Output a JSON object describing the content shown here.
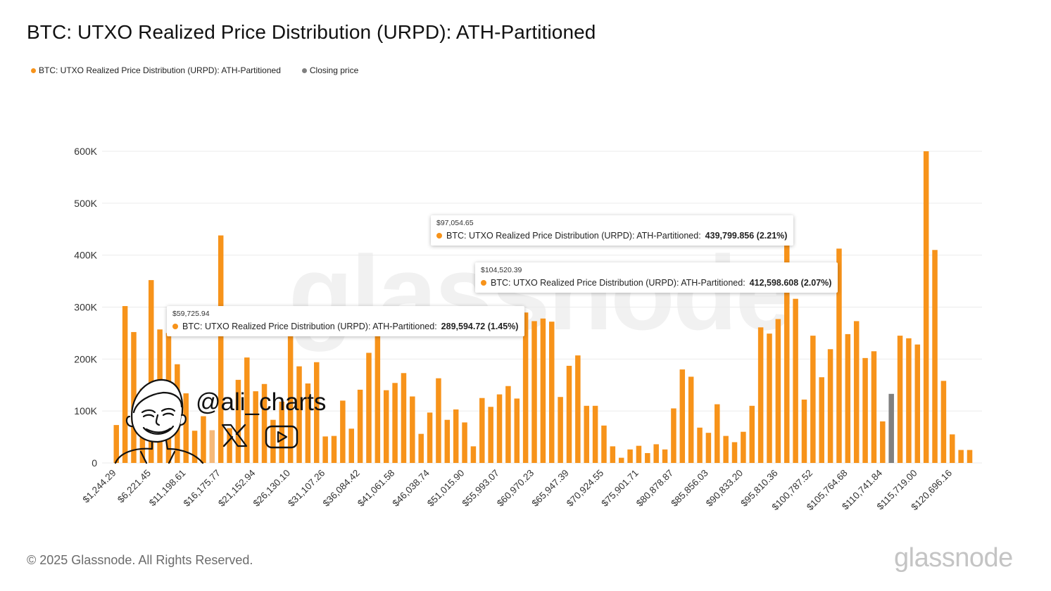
{
  "title": "BTC: UTXO Realized Price Distribution (URPD): ATH-Partitioned",
  "legend": [
    {
      "label": "BTC: UTXO Realized Price Distribution (URPD): ATH-Partitioned",
      "color": "#f7931a"
    },
    {
      "label": "Closing price",
      "color": "#808080"
    }
  ],
  "tooltips": [
    {
      "price": "$97,054.65",
      "series": "BTC: UTXO Realized Price Distribution (URPD): ATH-Partitioned:",
      "value": "439,799.856 (2.21%)"
    },
    {
      "price": "$104,520.39",
      "series": "BTC: UTXO Realized Price Distribution (URPD): ATH-Partitioned:",
      "value": "412,598.608 (2.07%)"
    },
    {
      "price": "$59,725.94",
      "series": "BTC: UTXO Realized Price Distribution (URPD): ATH-Partitioned:",
      "value": "289,594.72 (1.45%)"
    }
  ],
  "watermark": "glassnode",
  "handle": "@ali_charts",
  "icons": [
    "face-caricature-icon",
    "x-logo-icon",
    "youtube-icon"
  ],
  "copyright": "© 2025 Glassnode. All Rights Reserved.",
  "footer_logo": "glassnode",
  "colors": {
    "bar": "#f7931a",
    "closing": "#808080",
    "highlight": "#f5b97a",
    "grid": "#ebebeb"
  },
  "chart_data": {
    "type": "bar",
    "title": "BTC: UTXO Realized Price Distribution (URPD): ATH-Partitioned",
    "xlabel": "",
    "ylabel": "",
    "ylim": [
      0,
      600000
    ],
    "yticks": [
      0,
      100000,
      200000,
      300000,
      400000,
      500000,
      600000
    ],
    "ytick_labels": [
      "0",
      "100K",
      "200K",
      "300K",
      "400K",
      "500K",
      "600K"
    ],
    "xtick_labels": [
      "$1,244.29",
      "$6,221.45",
      "$11,198.61",
      "$16,175.77",
      "$21,152.94",
      "$26,130.10",
      "$31,107.26",
      "$36,084.42",
      "$41,061.58",
      "$46,038.74",
      "$51,015.90",
      "$55,993.07",
      "$60,970.23",
      "$65,947.39",
      "$70,924.55",
      "$75,901.71",
      "$80,878.87",
      "$85,856.03",
      "$90,833.20",
      "$95,810.36",
      "$100,787.52",
      "$105,764.68",
      "$110,741.84",
      "$115,719.00",
      "$120,696.16"
    ],
    "closing_price_index": 89,
    "highlight_index": 11,
    "grid": true,
    "legend_position": "top-left",
    "series": [
      {
        "name": "BTC: UTXO Realized Price Distribution (URPD): ATH-Partitioned",
        "values": [
          73000,
          302000,
          252000,
          143000,
          352000,
          257000,
          250000,
          190000,
          134000,
          62000,
          90000,
          63000,
          438000,
          67000,
          160000,
          203000,
          138000,
          152000,
          83000,
          118000,
          290000,
          186000,
          153000,
          194000,
          51000,
          52000,
          120000,
          66000,
          141000,
          212000,
          290000,
          140000,
          154000,
          173000,
          128000,
          56000,
          97000,
          163000,
          83000,
          103000,
          78000,
          32000,
          125000,
          108000,
          132000,
          148000,
          124000,
          289595,
          273000,
          278000,
          272000,
          127000,
          187000,
          207000,
          110000,
          110000,
          72000,
          32000,
          10000,
          26000,
          33000,
          19000,
          36000,
          26000,
          105000,
          180000,
          166000,
          68000,
          58000,
          113000,
          52000,
          40000,
          60000,
          110000,
          261000,
          249000,
          277000,
          439800,
          316000,
          122000,
          245000,
          165000,
          219000,
          412599,
          248000,
          273000,
          202000,
          215000,
          80000,
          133000,
          245000,
          240000,
          228000,
          600000,
          410000,
          158000,
          55000,
          25000,
          25000
        ]
      }
    ]
  }
}
